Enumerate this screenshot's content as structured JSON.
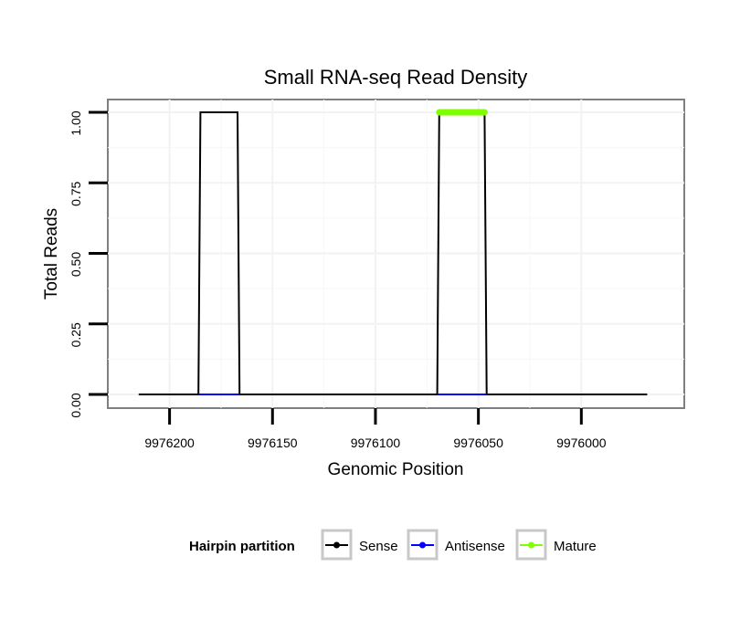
{
  "chart_data": {
    "type": "line",
    "title": "Small RNA-seq Read Density",
    "xlabel": "Genomic Position",
    "ylabel": "Total Reads",
    "x_reversed": true,
    "xlim": [
      9976230,
      9975950
    ],
    "ylim": [
      0.0,
      1.0
    ],
    "x_ticks": [
      9976200,
      9976150,
      9976100,
      9976050,
      9976000
    ],
    "x_tick_labels": [
      "9976200",
      "9976150",
      "9976100",
      "9976050",
      "9976000"
    ],
    "y_ticks": [
      0.0,
      0.25,
      0.5,
      0.75,
      1.0
    ],
    "y_tick_labels": [
      "0.00",
      "0.25",
      "0.50",
      "0.75",
      "1.00"
    ],
    "grid": true,
    "series": [
      {
        "name": "Sense",
        "color": "#000000",
        "x": [
          9976215,
          9976186,
          9976185,
          9976167,
          9976166,
          9976070,
          9976069,
          9976047,
          9976046,
          9975968
        ],
        "y": [
          0,
          0,
          1,
          1,
          0,
          0,
          1,
          1,
          0,
          0
        ]
      },
      {
        "name": "Antisense",
        "color": "#0000ff",
        "x": [
          9976186,
          9976166,
          9976070,
          9976046
        ],
        "y": [
          0,
          0,
          0,
          0
        ],
        "segments": [
          [
            0,
            1
          ],
          [
            2,
            3
          ]
        ]
      },
      {
        "name": "Mature",
        "color": "#7fff00",
        "x": [
          9976069,
          9976047
        ],
        "y": [
          1,
          1
        ]
      }
    ],
    "legend": {
      "title": "Hairpin partition",
      "position": "bottom",
      "entries": [
        {
          "label": "Sense",
          "color": "#000000"
        },
        {
          "label": "Antisense",
          "color": "#0000ff"
        },
        {
          "label": "Mature",
          "color": "#7fff00"
        }
      ]
    }
  }
}
